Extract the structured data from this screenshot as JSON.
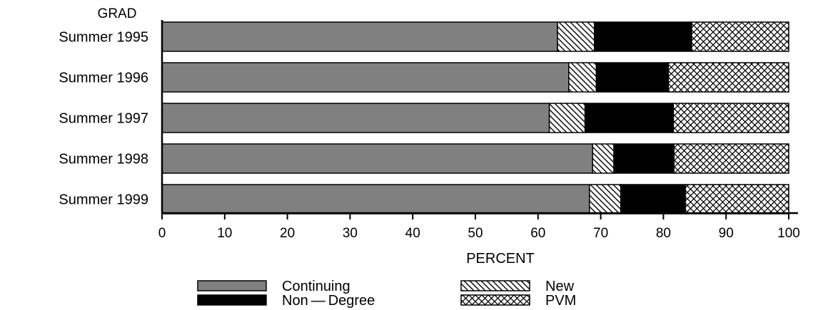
{
  "chart_data": {
    "type": "bar",
    "orientation": "horizontal",
    "stacked": true,
    "group_label": "GRAD",
    "categories": [
      "Summer 1995",
      "Summer 1996",
      "Summer 1997",
      "Summer 1998",
      "Summer 1999"
    ],
    "series": [
      {
        "name": "Continuing",
        "values": [
          63.1,
          64.9,
          61.8,
          68.7,
          68.2
        ],
        "fill": "#808080"
      },
      {
        "name": "New",
        "values": [
          5.9,
          4.4,
          5.7,
          3.4,
          5.0
        ],
        "fill": "hatch-diagonal"
      },
      {
        "name": "Non — Degree",
        "values": [
          15.5,
          11.5,
          14.1,
          9.6,
          10.3
        ],
        "fill": "#000000"
      },
      {
        "name": "PVM",
        "values": [
          15.5,
          19.2,
          18.4,
          18.3,
          16.5
        ],
        "fill": "hatch-cross"
      }
    ],
    "xlabel": "PERCENT",
    "xlim": [
      0,
      100
    ],
    "xticks": [
      0,
      10,
      20,
      30,
      40,
      50,
      60,
      70,
      80,
      90,
      100
    ],
    "grid": false,
    "legend": "bottom"
  }
}
